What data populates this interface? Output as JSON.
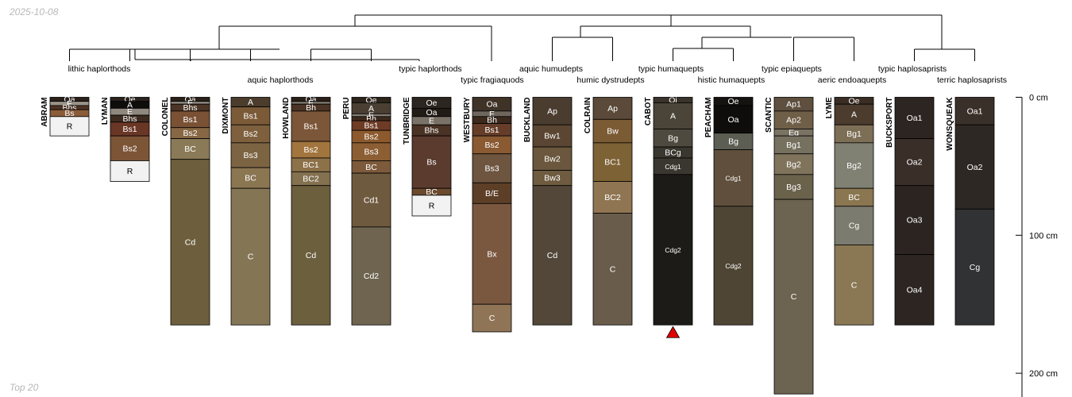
{
  "date_label": "2025-10-08",
  "footer_label": "Top 20",
  "chart_data": {
    "type": "soil-profile-sketch",
    "units": "cm",
    "depth_axis": {
      "ticks": [
        0,
        100,
        200
      ],
      "labels": [
        "0 cm",
        "100 cm",
        "200 cm"
      ]
    },
    "profiles": [
      {
        "name": "ABRAM",
        "horizons": [
          {
            "name": "Oa",
            "top": 0,
            "bottom": 3,
            "color": "#2b211b",
            "text": "#ffffff"
          },
          {
            "name": "E",
            "top": 3,
            "bottom": 6,
            "color": "#9b9388",
            "text": "#ffffff"
          },
          {
            "name": "Bhs",
            "top": 6,
            "bottom": 9,
            "color": "#4e3424",
            "text": "#ffffff"
          },
          {
            "name": "Bs",
            "top": 9,
            "bottom": 14,
            "color": "#8a5c3a",
            "text": "#ffffff"
          },
          {
            "name": "R",
            "top": 14,
            "bottom": 28,
            "color": "#f2f2f2",
            "text": "#000000"
          }
        ]
      },
      {
        "name": "LYMAN",
        "horizons": [
          {
            "name": "Oe",
            "top": 0,
            "bottom": 3,
            "color": "#2c241d",
            "text": "#ffffff"
          },
          {
            "name": "A",
            "top": 3,
            "bottom": 8,
            "color": "#0f0d0b",
            "text": "#ffffff"
          },
          {
            "name": "E",
            "top": 8,
            "bottom": 13,
            "color": "#8f887f",
            "text": "#ffffff"
          },
          {
            "name": "Bhs",
            "top": 13,
            "bottom": 18,
            "color": "#3e2b20",
            "text": "#ffffff"
          },
          {
            "name": "Bs1",
            "top": 18,
            "bottom": 28,
            "color": "#6a3626",
            "text": "#ffffff"
          },
          {
            "name": "Bs2",
            "top": 28,
            "bottom": 46,
            "color": "#7c5436",
            "text": "#ffffff"
          },
          {
            "name": "R",
            "top": 46,
            "bottom": 61,
            "color": "#f2f2f2",
            "text": "#000000"
          }
        ]
      },
      {
        "name": "COLONEL",
        "horizons": [
          {
            "name": "Oa",
            "top": 0,
            "bottom": 3,
            "color": "#2a211a",
            "text": "#ffffff"
          },
          {
            "name": "E",
            "top": 3,
            "bottom": 5,
            "color": "#8e887f",
            "text": "#ffffff"
          },
          {
            "name": "Bhs",
            "top": 5,
            "bottom": 10,
            "color": "#4c3526",
            "text": "#ffffff"
          },
          {
            "name": "Bs1",
            "top": 10,
            "bottom": 22,
            "color": "#7a5135",
            "text": "#ffffff"
          },
          {
            "name": "Bs2",
            "top": 22,
            "bottom": 30,
            "color": "#876744",
            "text": "#ffffff"
          },
          {
            "name": "BC",
            "top": 30,
            "bottom": 45,
            "color": "#8a7a58",
            "text": "#ffffff"
          },
          {
            "name": "Cd",
            "top": 45,
            "bottom": 165,
            "color": "#6d5f3d",
            "text": "#ffffff"
          }
        ]
      },
      {
        "name": "DIXMONT",
        "horizons": [
          {
            "name": "A",
            "top": 0,
            "bottom": 7,
            "color": "#4b3c2c",
            "text": "#ffffff"
          },
          {
            "name": "Bs1",
            "top": 7,
            "bottom": 20,
            "color": "#7b5a38",
            "text": "#ffffff"
          },
          {
            "name": "Bs2",
            "top": 20,
            "bottom": 33,
            "color": "#7e603e",
            "text": "#ffffff"
          },
          {
            "name": "Bs3",
            "top": 33,
            "bottom": 51,
            "color": "#7c6443",
            "text": "#ffffff"
          },
          {
            "name": "BC",
            "top": 51,
            "bottom": 66,
            "color": "#8b7652",
            "text": "#ffffff"
          },
          {
            "name": "C",
            "top": 66,
            "bottom": 165,
            "color": "#847655",
            "text": "#ffffff"
          }
        ]
      },
      {
        "name": "HOWLAND",
        "horizons": [
          {
            "name": "Oa",
            "top": 0,
            "bottom": 3,
            "color": "#2b2119",
            "text": "#ffffff"
          },
          {
            "name": "E",
            "top": 3,
            "bottom": 5,
            "color": "#7d766b",
            "text": "#ffffff"
          },
          {
            "name": "Bh",
            "top": 5,
            "bottom": 10,
            "color": "#4b3425",
            "text": "#ffffff"
          },
          {
            "name": "Bs1",
            "top": 10,
            "bottom": 32,
            "color": "#7c5638",
            "text": "#ffffff"
          },
          {
            "name": "Bs2",
            "top": 32,
            "bottom": 44,
            "color": "#a2753e",
            "text": "#ffffff"
          },
          {
            "name": "BC1",
            "top": 44,
            "bottom": 54,
            "color": "#8d7149",
            "text": "#ffffff"
          },
          {
            "name": "BC2",
            "top": 54,
            "bottom": 64,
            "color": "#837150",
            "text": "#ffffff"
          },
          {
            "name": "Cd",
            "top": 64,
            "bottom": 165,
            "color": "#6c5f3e",
            "text": "#ffffff"
          }
        ]
      },
      {
        "name": "PERU",
        "horizons": [
          {
            "name": "Oe",
            "top": 0,
            "bottom": 4,
            "color": "#2d241c",
            "text": "#ffffff"
          },
          {
            "name": "A",
            "top": 4,
            "bottom": 12,
            "color": "#4b3f33",
            "text": "#ffffff"
          },
          {
            "name": "E",
            "top": 12,
            "bottom": 14,
            "color": "#857e74",
            "text": "#ffffff"
          },
          {
            "name": "Bh",
            "top": 14,
            "bottom": 17,
            "color": "#3e2a1d",
            "text": "#ffffff"
          },
          {
            "name": "Bs1",
            "top": 17,
            "bottom": 24,
            "color": "#6e3b25",
            "text": "#ffffff"
          },
          {
            "name": "Bs2",
            "top": 24,
            "bottom": 33,
            "color": "#8c5a2e",
            "text": "#ffffff"
          },
          {
            "name": "Bs3",
            "top": 33,
            "bottom": 46,
            "color": "#8c5e34",
            "text": "#ffffff"
          },
          {
            "name": "BC",
            "top": 46,
            "bottom": 55,
            "color": "#7d5a3b",
            "text": "#ffffff"
          },
          {
            "name": "Cd1",
            "top": 55,
            "bottom": 94,
            "color": "#6e5a3e",
            "text": "#ffffff"
          },
          {
            "name": "Cd2",
            "top": 94,
            "bottom": 165,
            "color": "#6f6450",
            "text": "#ffffff"
          }
        ]
      },
      {
        "name": "TUNBRIDGE",
        "horizons": [
          {
            "name": "Oe",
            "top": 0,
            "bottom": 8,
            "color": "#2c2620",
            "text": "#ffffff"
          },
          {
            "name": "Oa",
            "top": 8,
            "bottom": 14,
            "color": "#221c17",
            "text": "#ffffff"
          },
          {
            "name": "E",
            "top": 14,
            "bottom": 20,
            "color": "#7a7268",
            "text": "#ffffff"
          },
          {
            "name": "Bhs",
            "top": 20,
            "bottom": 28,
            "color": "#4a3225",
            "text": "#ffffff"
          },
          {
            "name": "Bs",
            "top": 28,
            "bottom": 66,
            "color": "#5a3b2e",
            "text": "#ffffff"
          },
          {
            "name": "BC",
            "top": 66,
            "bottom": 71,
            "color": "#6b4a2e",
            "text": "#ffffff"
          },
          {
            "name": "R",
            "top": 71,
            "bottom": 86,
            "color": "#f2f2f2",
            "text": "#000000"
          }
        ]
      },
      {
        "name": "WESTBURY",
        "horizons": [
          {
            "name": "Oa",
            "top": 0,
            "bottom": 10,
            "color": "#3f3227",
            "text": "#ffffff"
          },
          {
            "name": "E",
            "top": 10,
            "bottom": 14,
            "color": "#6f675e",
            "text": "#ffffff"
          },
          {
            "name": "Bh",
            "top": 14,
            "bottom": 19,
            "color": "#3b291e",
            "text": "#ffffff"
          },
          {
            "name": "Bs1",
            "top": 19,
            "bottom": 28,
            "color": "#653d28",
            "text": "#ffffff"
          },
          {
            "name": "Bs2",
            "top": 28,
            "bottom": 41,
            "color": "#8a5a32",
            "text": "#ffffff"
          },
          {
            "name": "Bs3",
            "top": 41,
            "bottom": 62,
            "color": "#6d5540",
            "text": "#ffffff"
          },
          {
            "name": "B/E",
            "top": 62,
            "bottom": 77,
            "color": "#5d3f27",
            "text": "#ffffff"
          },
          {
            "name": "Bx",
            "top": 77,
            "bottom": 150,
            "color": "#7a5840",
            "text": "#ffffff"
          },
          {
            "name": "C",
            "top": 150,
            "bottom": 170,
            "color": "#8f7556",
            "text": "#ffffff"
          }
        ]
      },
      {
        "name": "BUCKLAND",
        "horizons": [
          {
            "name": "Ap",
            "top": 0,
            "bottom": 20,
            "color": "#4a3c2f",
            "text": "#ffffff"
          },
          {
            "name": "Bw1",
            "top": 20,
            "bottom": 36,
            "color": "#5a4632",
            "text": "#ffffff"
          },
          {
            "name": "Bw2",
            "top": 36,
            "bottom": 53,
            "color": "#6a573d",
            "text": "#ffffff"
          },
          {
            "name": "Bw3",
            "top": 53,
            "bottom": 64,
            "color": "#6e5b40",
            "text": "#ffffff"
          },
          {
            "name": "Cd",
            "top": 64,
            "bottom": 165,
            "color": "#53473a",
            "text": "#ffffff"
          }
        ]
      },
      {
        "name": "COLRAIN",
        "horizons": [
          {
            "name": "Ap",
            "top": 0,
            "bottom": 16,
            "color": "#5b4a39",
            "text": "#ffffff"
          },
          {
            "name": "Bw",
            "top": 16,
            "bottom": 33,
            "color": "#7b5b34",
            "text": "#ffffff"
          },
          {
            "name": "BC1",
            "top": 33,
            "bottom": 61,
            "color": "#7d6236",
            "text": "#ffffff"
          },
          {
            "name": "BC2",
            "top": 61,
            "bottom": 84,
            "color": "#907552",
            "text": "#ffffff"
          },
          {
            "name": "C",
            "top": 84,
            "bottom": 165,
            "color": "#6a5c4b",
            "text": "#ffffff"
          }
        ]
      },
      {
        "name": "CABOT",
        "horizons": [
          {
            "name": "Oi",
            "top": 0,
            "bottom": 4,
            "color": "#3a332b",
            "text": "#ffffff"
          },
          {
            "name": "A",
            "top": 4,
            "bottom": 23,
            "color": "#4a4538",
            "text": "#ffffff"
          },
          {
            "name": "Bg",
            "top": 23,
            "bottom": 36,
            "color": "#4f4a3f",
            "text": "#ffffff"
          },
          {
            "name": "BCg",
            "top": 36,
            "bottom": 44,
            "color": "#3a372f",
            "text": "#ffffff"
          },
          {
            "name": "Cdg1",
            "top": 44,
            "bottom": 56,
            "color": "#3a3730",
            "text": "#ffffff"
          },
          {
            "name": "Cdg2",
            "top": 56,
            "bottom": 165,
            "color": "#1d1b18",
            "text": "#ffffff"
          }
        ]
      },
      {
        "name": "PEACHAM",
        "horizons": [
          {
            "name": "Oe",
            "top": 0,
            "bottom": 6,
            "color": "#151310",
            "text": "#ffffff"
          },
          {
            "name": "Oa",
            "top": 6,
            "bottom": 26,
            "color": "#0f0d0b",
            "text": "#ffffff"
          },
          {
            "name": "Bg",
            "top": 26,
            "bottom": 38,
            "color": "#5c5e54",
            "text": "#ffffff"
          },
          {
            "name": "Cdg1",
            "top": 38,
            "bottom": 79,
            "color": "#5f4f3c",
            "text": "#ffffff"
          },
          {
            "name": "Cdg2",
            "top": 79,
            "bottom": 165,
            "color": "#4e4535",
            "text": "#ffffff"
          }
        ]
      },
      {
        "name": "SCANTIC",
        "horizons": [
          {
            "name": "Ap1",
            "top": 0,
            "bottom": 10,
            "color": "#5e4f3e",
            "text": "#ffffff"
          },
          {
            "name": "Ap2",
            "top": 10,
            "bottom": 23,
            "color": "#6f5f48",
            "text": "#ffffff"
          },
          {
            "name": "Eg",
            "top": 23,
            "bottom": 28,
            "color": "#7a7363",
            "text": "#ffffff"
          },
          {
            "name": "Bg1",
            "top": 28,
            "bottom": 41,
            "color": "#76705f",
            "text": "#ffffff"
          },
          {
            "name": "Bg2",
            "top": 41,
            "bottom": 56,
            "color": "#7f735b",
            "text": "#ffffff"
          },
          {
            "name": "Bg3",
            "top": 56,
            "bottom": 74,
            "color": "#6b624c",
            "text": "#ffffff"
          },
          {
            "name": "C",
            "top": 74,
            "bottom": 215,
            "color": "#6c6350",
            "text": "#ffffff"
          }
        ]
      },
      {
        "name": "LYME",
        "horizons": [
          {
            "name": "Oe",
            "top": 0,
            "bottom": 5,
            "color": "#3a2d23",
            "text": "#ffffff"
          },
          {
            "name": "A",
            "top": 5,
            "bottom": 20,
            "color": "#4b3c2e",
            "text": "#ffffff"
          },
          {
            "name": "Bg1",
            "top": 20,
            "bottom": 33,
            "color": "#7d6f56",
            "text": "#ffffff"
          },
          {
            "name": "Bg2",
            "top": 33,
            "bottom": 66,
            "color": "#808073",
            "text": "#ffffff"
          },
          {
            "name": "BC",
            "top": 66,
            "bottom": 79,
            "color": "#8a7650",
            "text": "#ffffff"
          },
          {
            "name": "Cg",
            "top": 79,
            "bottom": 107,
            "color": "#7c7b6f",
            "text": "#ffffff"
          },
          {
            "name": "C",
            "top": 107,
            "bottom": 165,
            "color": "#8a7855",
            "text": "#ffffff"
          }
        ]
      },
      {
        "name": "BUCKSPORT",
        "horizons": [
          {
            "name": "Oa1",
            "top": 0,
            "bottom": 30,
            "color": "#2d2521",
            "text": "#ffffff"
          },
          {
            "name": "Oa2",
            "top": 30,
            "bottom": 64,
            "color": "#3a2e28",
            "text": "#ffffff"
          },
          {
            "name": "Oa3",
            "top": 64,
            "bottom": 114,
            "color": "#2b2420",
            "text": "#ffffff"
          },
          {
            "name": "Oa4",
            "top": 114,
            "bottom": 165,
            "color": "#2c2521",
            "text": "#ffffff"
          }
        ]
      },
      {
        "name": "WONSQUEAK",
        "horizons": [
          {
            "name": "Oa1",
            "top": 0,
            "bottom": 20,
            "color": "#3a302a",
            "text": "#ffffff"
          },
          {
            "name": "Oa2",
            "top": 20,
            "bottom": 81,
            "color": "#2e2824",
            "text": "#ffffff"
          },
          {
            "name": "Cg",
            "top": 81,
            "bottom": 165,
            "color": "#303234",
            "text": "#ffffff"
          }
        ]
      }
    ],
    "deep_marker_profile": "CABOT",
    "deep_marker_color": "#e00000",
    "taxa_labels": [
      {
        "text": "lithic haplorthods",
        "tier": 1
      },
      {
        "text": "aquic haplorthods",
        "tier": 2
      },
      {
        "text": "typic haplorthods",
        "tier": 1
      },
      {
        "text": "typic fragiaquods",
        "tier": 2
      },
      {
        "text": "aquic humudepts",
        "tier": 1
      },
      {
        "text": "humic dystrudepts",
        "tier": 2
      },
      {
        "text": "typic humaquepts",
        "tier": 1
      },
      {
        "text": "histic humaquepts",
        "tier": 2
      },
      {
        "text": "typic epiaquepts",
        "tier": 1
      },
      {
        "text": "aeric endoaquepts",
        "tier": 2
      },
      {
        "text": "typic haplosaprists",
        "tier": 1
      },
      {
        "text": "terric haplosaprists",
        "tier": 2
      }
    ]
  }
}
